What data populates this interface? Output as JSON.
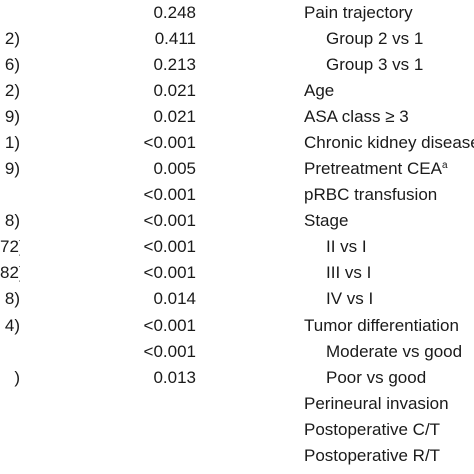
{
  "rows": [
    {
      "ci": "",
      "p": "0.248",
      "variable": "Pain trajectory",
      "indent": false
    },
    {
      "ci": "2)",
      "p": "0.411",
      "variable": "Group 2 vs 1",
      "indent": true
    },
    {
      "ci": "6)",
      "p": "0.213",
      "variable": "Group 3 vs 1",
      "indent": true
    },
    {
      "ci": "2)",
      "p": "0.021",
      "variable": "Age",
      "indent": false
    },
    {
      "ci": "9)",
      "p": "0.021",
      "variable": "ASA class ≥ 3",
      "indent": false
    },
    {
      "ci": "1)",
      "p": "<0.001",
      "variable": "Chronic kidney disease",
      "indent": false
    },
    {
      "ci": "9)",
      "p": "0.005",
      "variable": "Pretreatment CEA",
      "sup": "a",
      "indent": false
    },
    {
      "ci": "",
      "p": "<0.001",
      "variable": "pRBC transfusion",
      "indent": false
    },
    {
      "ci": "8)",
      "p": "<0.001",
      "variable": "Stage",
      "indent": false
    },
    {
      "ci": "72)",
      "p": "<0.001",
      "variable": "II vs I",
      "indent": true
    },
    {
      "ci": "82)",
      "p": "<0.001",
      "variable": "III vs I",
      "indent": true
    },
    {
      "ci": "8)",
      "p": "0.014",
      "variable": "IV vs I",
      "indent": true
    },
    {
      "ci": "4)",
      "p": "<0.001",
      "variable": "Tumor differentiation",
      "indent": false
    },
    {
      "ci": "",
      "p": "<0.001",
      "variable": "Moderate vs good",
      "indent": true
    },
    {
      "ci": ")",
      "p": "0.013",
      "variable": "Poor vs good",
      "indent": true
    },
    {
      "ci": "",
      "p": "",
      "variable": "Perineural invasion",
      "indent": false
    },
    {
      "ci": "",
      "p": "",
      "variable": "Postoperative C/T",
      "indent": false
    },
    {
      "ci": "",
      "p": "",
      "variable": "Postoperative R/T",
      "indent": false
    }
  ]
}
